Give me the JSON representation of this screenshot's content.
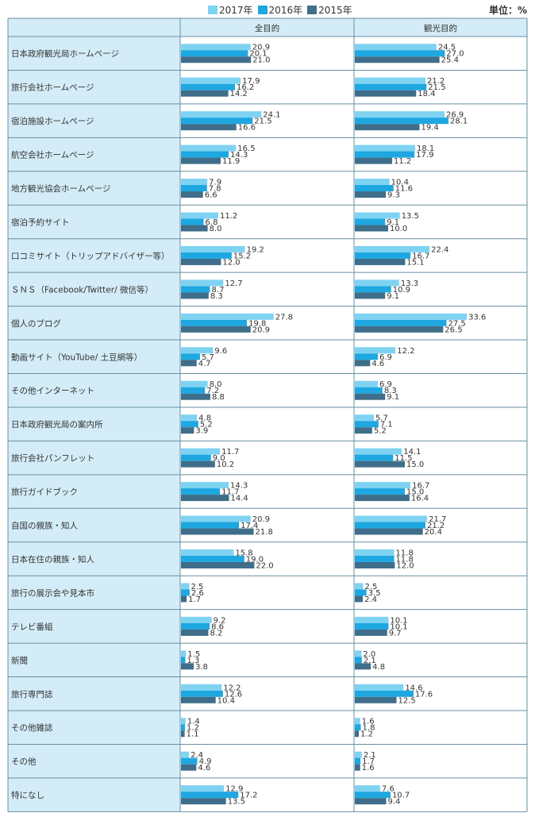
{
  "unit_label": "単位：%",
  "chart_data": {
    "type": "bar",
    "orientation": "horizontal",
    "columns": [
      "全目的",
      "観光目的"
    ],
    "series": [
      {
        "name": "2017年",
        "color": "#7fd3f2"
      },
      {
        "name": "2016年",
        "color": "#1ea7e0"
      },
      {
        "name": "2015年",
        "color": "#3f6e8a"
      }
    ],
    "categories": [
      "日本政府観光局ホームページ",
      "旅行会社ホームページ",
      "宿泊施設ホームページ",
      "航空会社ホームページ",
      "地方観光協会ホームページ",
      "宿泊予約サイト",
      "口コミサイト（トリップアドバイザー等）",
      "ＳＮＳ（Facebook/Twitter/ 微信等）",
      "個人のブログ",
      "動画サイト（YouTube/ 土豆網等）",
      "その他インターネット",
      "日本政府観光局の案内所",
      "旅行会社パンフレット",
      "旅行ガイドブック",
      "自国の親族・知人",
      "日本在住の親族・知人",
      "旅行の展示会や見本市",
      "テレビ番組",
      "新聞",
      "旅行専門誌",
      "その他雑誌",
      "その他",
      "特になし"
    ],
    "values": {
      "全目的": [
        [
          20.9,
          20.1,
          21.0
        ],
        [
          17.9,
          16.2,
          14.2
        ],
        [
          24.1,
          21.5,
          16.6
        ],
        [
          16.5,
          14.3,
          11.9
        ],
        [
          7.9,
          7.8,
          6.6
        ],
        [
          11.2,
          6.8,
          8.0
        ],
        [
          19.2,
          15.2,
          12.0
        ],
        [
          12.7,
          8.7,
          8.3
        ],
        [
          27.8,
          19.8,
          20.9
        ],
        [
          9.6,
          5.7,
          4.7
        ],
        [
          8.0,
          7.2,
          8.8
        ],
        [
          4.8,
          5.2,
          3.9
        ],
        [
          11.7,
          9.0,
          10.2
        ],
        [
          14.3,
          11.7,
          14.4
        ],
        [
          20.9,
          17.4,
          21.8
        ],
        [
          15.8,
          19.0,
          22.0
        ],
        [
          2.5,
          2.6,
          1.7
        ],
        [
          9.2,
          8.6,
          8.2
        ],
        [
          1.5,
          1.3,
          3.8
        ],
        [
          12.2,
          12.6,
          10.4
        ],
        [
          1.4,
          1.2,
          1.1
        ],
        [
          2.4,
          4.9,
          4.6
        ],
        [
          12.9,
          17.2,
          13.5
        ]
      ],
      "観光目的": [
        [
          24.5,
          27.0,
          25.4
        ],
        [
          21.2,
          21.5,
          18.4
        ],
        [
          26.9,
          28.1,
          19.4
        ],
        [
          18.1,
          17.9,
          11.2
        ],
        [
          10.4,
          11.6,
          9.3
        ],
        [
          13.5,
          9.1,
          10.0
        ],
        [
          22.4,
          16.7,
          15.1
        ],
        [
          13.3,
          10.9,
          9.1
        ],
        [
          33.6,
          27.5,
          26.5
        ],
        [
          12.2,
          6.9,
          4.6
        ],
        [
          6.9,
          8.3,
          9.1
        ],
        [
          5.7,
          7.1,
          5.2
        ],
        [
          14.1,
          11.5,
          15.0
        ],
        [
          16.7,
          15.0,
          16.4
        ],
        [
          21.7,
          21.2,
          20.4
        ],
        [
          11.8,
          11.8,
          12.0
        ],
        [
          2.5,
          3.5,
          2.4
        ],
        [
          10.1,
          10.1,
          9.7
        ],
        [
          2.0,
          2.1,
          4.8
        ],
        [
          14.6,
          17.6,
          12.5
        ],
        [
          1.6,
          1.8,
          1.2
        ],
        [
          2.1,
          1.7,
          1.6
        ],
        [
          7.6,
          10.7,
          9.4
        ]
      ]
    },
    "legend_position": "top",
    "grid": false
  }
}
